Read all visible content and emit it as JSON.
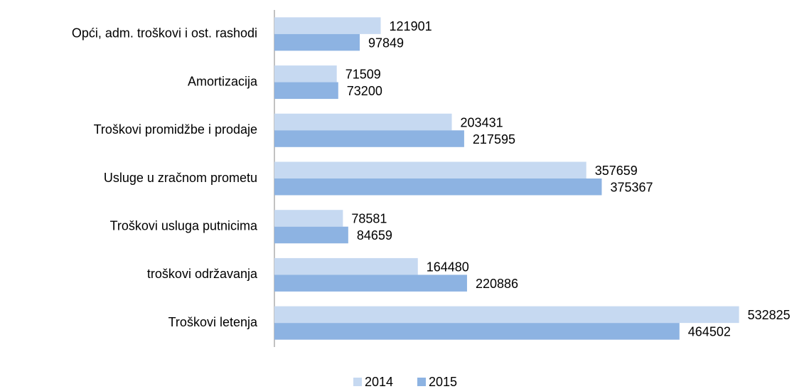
{
  "chart_data": {
    "type": "bar",
    "orientation": "horizontal",
    "categories": [
      "Opći, adm. troškovi i ost. rashodi",
      "Amortizacija",
      "Troškovi promidžbe i prodaje",
      "Usluge u zračnom prometu",
      "Troškovi usluga putnicima",
      "troškovi održavanja",
      "Troškovi letenja"
    ],
    "series": [
      {
        "name": "2014",
        "color": "#c6d9f1",
        "values": [
          121901,
          71509,
          203431,
          357659,
          78581,
          164480,
          532825
        ]
      },
      {
        "name": "2015",
        "color": "#8db3e2",
        "values": [
          97849,
          73200,
          217595,
          375367,
          84659,
          220886,
          464502
        ]
      }
    ],
    "xlim": [
      0,
      600000
    ],
    "legend": "bottom"
  }
}
